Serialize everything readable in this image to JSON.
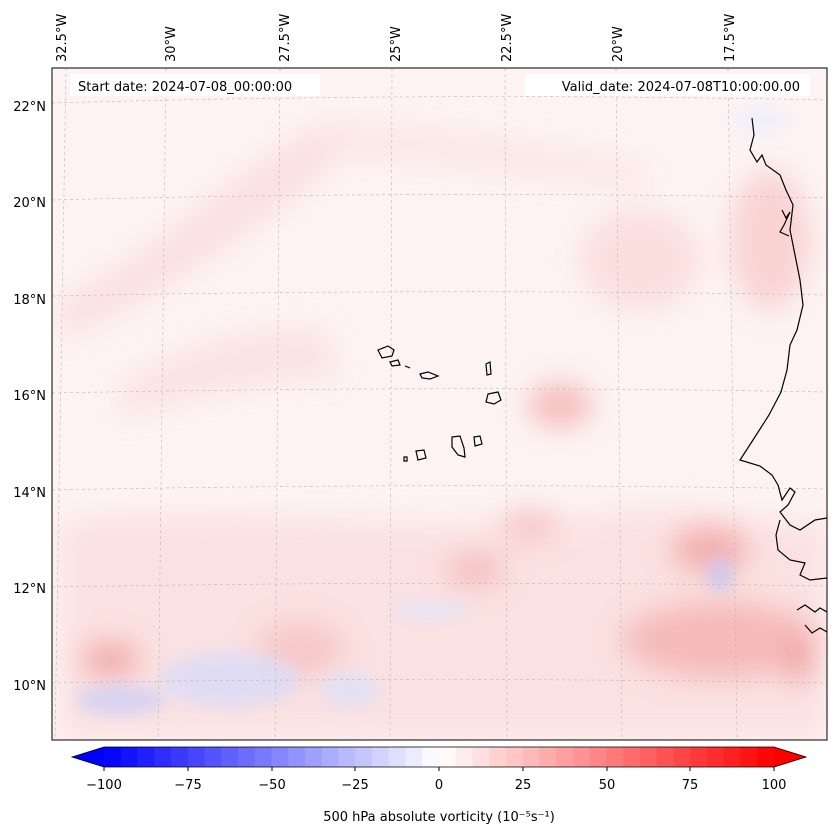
{
  "map": {
    "start_label": "Start date: 2024-07-08_00:00:00",
    "valid_label": "Valid_date: 2024-07-08T10:00:00.00",
    "lon_labels": [
      "32.5°W",
      "30°W",
      "27.5°W",
      "25°W",
      "22.5°W",
      "20°W",
      "17.5°W"
    ],
    "lat_labels": [
      "22°N",
      "20°N",
      "18°N",
      "16°N",
      "14°N",
      "12°N",
      "10°N"
    ],
    "gridlines": true,
    "field": "500 hPa absolute vorticity",
    "colormap": "bwr",
    "features": [
      "west-african-coastline",
      "cape-verde-islands"
    ]
  },
  "colorbar": {
    "label": "500 hPa absolute vorticity (10⁻⁵s⁻¹)",
    "min": -100,
    "max": 100,
    "extend": "both",
    "ticks": [
      "−100",
      "−75",
      "−50",
      "−25",
      "0",
      "25",
      "50",
      "75",
      "100"
    ],
    "colors": {
      "min": "#0000ff",
      "mid": "#ffffff",
      "max": "#ff0000"
    }
  }
}
